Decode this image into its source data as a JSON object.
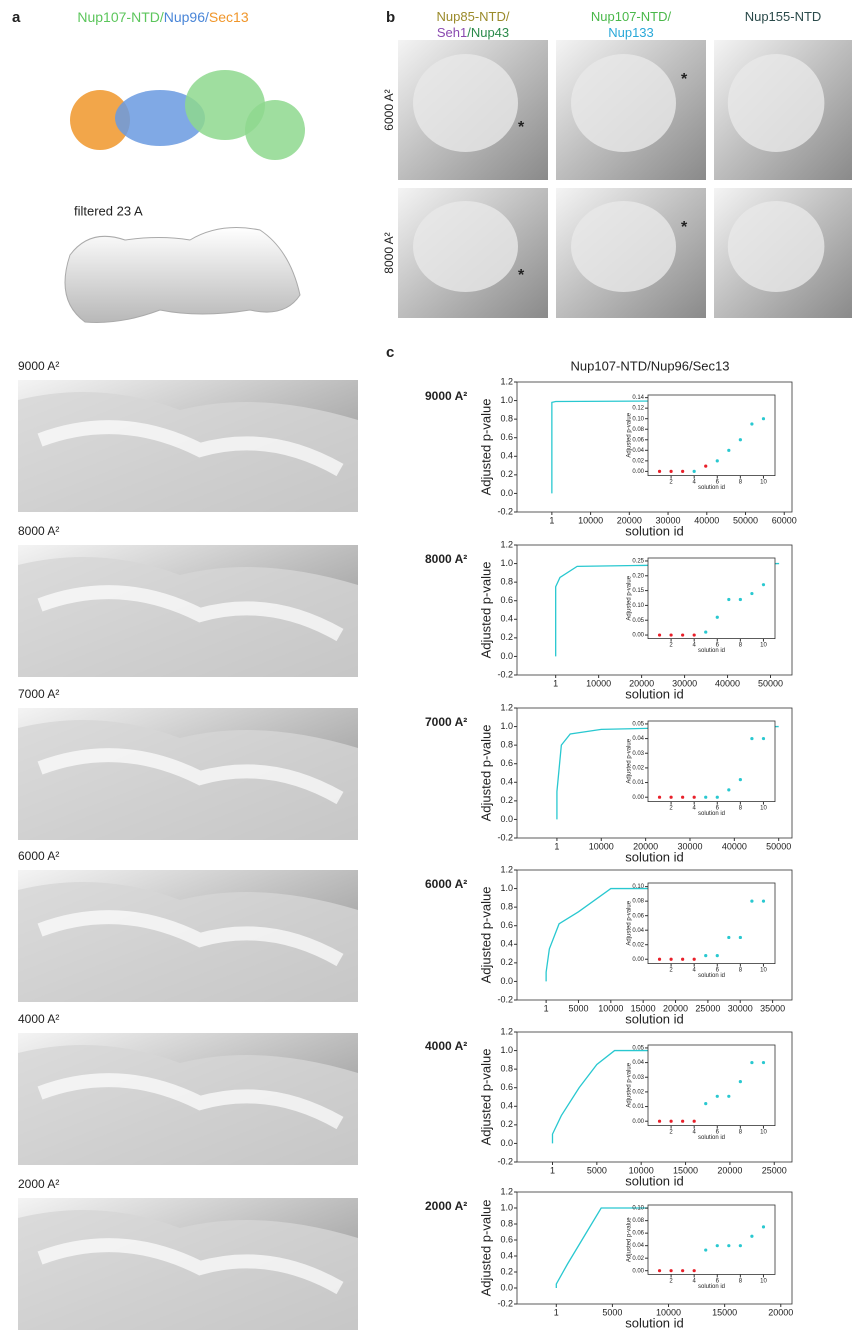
{
  "panel_a": {
    "label": "a",
    "title": [
      {
        "text": "Nup107-NTD/",
        "color": "#5cc65c"
      },
      {
        "text": "Nup96/",
        "color": "#4a86d8"
      },
      {
        "text": "Sec13",
        "color": "#f0962a"
      }
    ],
    "filtered": "filtered 23 A"
  },
  "panel_b": {
    "label": "b",
    "columns": [
      [
        [
          {
            "text": "Nup85-NTD/",
            "color": "#9a8a2a"
          }
        ],
        [
          {
            "text": "Seh1",
            "color": "#8a4ab0"
          },
          {
            "text": "/Nup43",
            "color": "#2a8a4a"
          }
        ]
      ],
      [
        [
          {
            "text": "Nup107-NTD/",
            "color": "#4ab84a"
          }
        ],
        [
          {
            "text": "Nup133",
            "color": "#29a8d8"
          }
        ]
      ],
      [
        [
          {
            "text": "Nup155-NTD",
            "color": "#2a4a4a"
          }
        ]
      ]
    ],
    "rows": [
      "6000 A²",
      "8000 A²"
    ],
    "marker": "*"
  },
  "maps": {
    "labels": [
      "9000 A²",
      "8000 A²",
      "7000 A²",
      "6000 A²",
      "4000 A²",
      "2000 A²"
    ]
  },
  "panel_c": {
    "label": "c",
    "title": "Nup107-NTD/Nup96/Sec13"
  },
  "chart_data": [
    {
      "type": "line",
      "label": "9000 A²",
      "xlabel": "solution id",
      "ylabel": "Adjusted p-value",
      "color": "#29c8d0",
      "x": [
        1,
        1,
        1000,
        57000
      ],
      "values": [
        0,
        0.98,
        0.99,
        1.0
      ],
      "xlim": [
        -9000,
        62000
      ],
      "xticks": [
        1,
        10000,
        20000,
        30000,
        40000,
        50000,
        60000
      ],
      "ylim": [
        -0.2,
        1.2
      ],
      "yticks": [
        {
          "value": -0.2,
          "label": "-0.2"
        },
        {
          "value": 0,
          "label": "0.0"
        },
        {
          "value": 0.2,
          "label": "0.2"
        },
        {
          "value": 0.4,
          "label": "0.4"
        },
        {
          "value": 0.6,
          "label": "0.6"
        },
        {
          "value": 0.8,
          "label": "0.8"
        },
        {
          "value": 1,
          "label": "1.0"
        },
        {
          "value": 1.2,
          "label": "1.2"
        }
      ],
      "inset": {
        "type": "scatter",
        "xlabel": "solution id",
        "ylabel": "Adjusted p-value",
        "x": [
          1,
          2,
          3,
          4,
          5,
          6,
          7,
          8,
          9,
          10
        ],
        "values": [
          0,
          0,
          0,
          0,
          0.01,
          0.02,
          0.04,
          0.06,
          0.09,
          0.1
        ],
        "colors": [
          "#e8202a",
          "#e8202a",
          "#e8202a",
          "#29c8d0",
          "#e8202a",
          "#29c8d0",
          "#29c8d0",
          "#29c8d0",
          "#29c8d0",
          "#29c8d0"
        ],
        "xlim": [
          0,
          11
        ],
        "xticks": [
          2,
          4,
          6,
          8,
          10
        ],
        "ylim": [
          -0.008,
          0.145
        ],
        "yticks": [
          {
            "value": 0,
            "label": "0.00"
          },
          {
            "value": 0.02,
            "label": "0.02"
          },
          {
            "value": 0.04,
            "label": "0.04"
          },
          {
            "value": 0.06,
            "label": "0.06"
          },
          {
            "value": 0.08,
            "label": "0.08"
          },
          {
            "value": 0.1,
            "label": "0.10"
          },
          {
            "value": 0.12,
            "label": "0.12"
          },
          {
            "value": 0.14,
            "label": "0.14"
          }
        ]
      }
    },
    {
      "type": "line",
      "label": "8000 A²",
      "xlabel": "solution id",
      "ylabel": "Adjusted p-value",
      "color": "#29c8d0",
      "x": [
        1,
        1,
        1000,
        5000,
        20000,
        52000
      ],
      "values": [
        0,
        0.75,
        0.85,
        0.97,
        0.98,
        1.0
      ],
      "xlim": [
        -9000,
        55000
      ],
      "xticks": [
        1,
        10000,
        20000,
        30000,
        40000,
        50000
      ],
      "ylim": [
        -0.2,
        1.2
      ],
      "yticks": [
        {
          "value": -0.2,
          "label": "-0.2"
        },
        {
          "value": 0,
          "label": "0.0"
        },
        {
          "value": 0.2,
          "label": "0.2"
        },
        {
          "value": 0.4,
          "label": "0.4"
        },
        {
          "value": 0.6,
          "label": "0.6"
        },
        {
          "value": 0.8,
          "label": "0.8"
        },
        {
          "value": 1,
          "label": "1.0"
        },
        {
          "value": 1.2,
          "label": "1.2"
        }
      ],
      "inset": {
        "type": "scatter",
        "xlabel": "solution id",
        "ylabel": "Adjusted p-value",
        "x": [
          1,
          2,
          3,
          4,
          5,
          6,
          7,
          8,
          9,
          10
        ],
        "values": [
          0,
          0,
          0,
          0,
          0.01,
          0.06,
          0.12,
          0.12,
          0.14,
          0.17
        ],
        "colors": [
          "#e8202a",
          "#e8202a",
          "#e8202a",
          "#e8202a",
          "#29c8d0",
          "#29c8d0",
          "#29c8d0",
          "#29c8d0",
          "#29c8d0",
          "#29c8d0"
        ],
        "xlim": [
          0,
          11
        ],
        "xticks": [
          2,
          4,
          6,
          8,
          10
        ],
        "ylim": [
          -0.012,
          0.26
        ],
        "yticks": [
          {
            "value": 0,
            "label": "0.00"
          },
          {
            "value": 0.05,
            "label": "0.05"
          },
          {
            "value": 0.1,
            "label": "0.10"
          },
          {
            "value": 0.15,
            "label": "0.15"
          },
          {
            "value": 0.2,
            "label": "0.20"
          },
          {
            "value": 0.25,
            "label": "0.25"
          }
        ]
      }
    },
    {
      "type": "line",
      "label": "7000 A²",
      "xlabel": "solution id",
      "ylabel": "Adjusted p-value",
      "color": "#29c8d0",
      "x": [
        1,
        1,
        1000,
        3000,
        10000,
        30000,
        50000
      ],
      "values": [
        0,
        0.3,
        0.8,
        0.92,
        0.97,
        0.99,
        1.0
      ],
      "xlim": [
        -9000,
        53000
      ],
      "xticks": [
        1,
        10000,
        20000,
        30000,
        40000,
        50000
      ],
      "ylim": [
        -0.2,
        1.2
      ],
      "yticks": [
        {
          "value": -0.2,
          "label": "-0.2"
        },
        {
          "value": 0,
          "label": "0.0"
        },
        {
          "value": 0.2,
          "label": "0.2"
        },
        {
          "value": 0.4,
          "label": "0.4"
        },
        {
          "value": 0.6,
          "label": "0.6"
        },
        {
          "value": 0.8,
          "label": "0.8"
        },
        {
          "value": 1,
          "label": "1.0"
        },
        {
          "value": 1.2,
          "label": "1.2"
        }
      ],
      "inset": {
        "type": "scatter",
        "xlabel": "solution id",
        "ylabel": "Adjusted p-value",
        "x": [
          1,
          2,
          3,
          4,
          5,
          6,
          7,
          8,
          9,
          10
        ],
        "values": [
          0,
          0,
          0,
          0,
          0,
          0,
          0.005,
          0.012,
          0.04,
          0.04
        ],
        "colors": [
          "#e8202a",
          "#e8202a",
          "#e8202a",
          "#e8202a",
          "#29c8d0",
          "#29c8d0",
          "#29c8d0",
          "#29c8d0",
          "#29c8d0",
          "#29c8d0"
        ],
        "xlim": [
          0,
          11
        ],
        "xticks": [
          2,
          4,
          6,
          8,
          10
        ],
        "ylim": [
          -0.003,
          0.052
        ],
        "yticks": [
          {
            "value": 0,
            "label": "0.00"
          },
          {
            "value": 0.01,
            "label": "0.01"
          },
          {
            "value": 0.02,
            "label": "0.02"
          },
          {
            "value": 0.03,
            "label": "0.03"
          },
          {
            "value": 0.04,
            "label": "0.04"
          },
          {
            "value": 0.05,
            "label": "0.05"
          }
        ]
      }
    },
    {
      "type": "line",
      "label": "6000 A²",
      "xlabel": "solution id",
      "ylabel": "Adjusted p-value",
      "color": "#29c8d0",
      "x": [
        1,
        1,
        500,
        2000,
        5000,
        10000,
        35000
      ],
      "values": [
        0,
        0.1,
        0.35,
        0.62,
        0.75,
        1.0,
        1.0
      ],
      "xlim": [
        -4500,
        38000
      ],
      "xticks": [
        1,
        5000,
        10000,
        15000,
        20000,
        25000,
        30000,
        35000
      ],
      "ylim": [
        -0.2,
        1.2
      ],
      "yticks": [
        {
          "value": -0.2,
          "label": "-0.2"
        },
        {
          "value": 0,
          "label": "0.0"
        },
        {
          "value": 0.2,
          "label": "0.2"
        },
        {
          "value": 0.4,
          "label": "0.4"
        },
        {
          "value": 0.6,
          "label": "0.6"
        },
        {
          "value": 0.8,
          "label": "0.8"
        },
        {
          "value": 1,
          "label": "1.0"
        },
        {
          "value": 1.2,
          "label": "1.2"
        }
      ],
      "inset": {
        "type": "scatter",
        "xlabel": "solution id",
        "ylabel": "Adjusted p-value",
        "x": [
          1,
          2,
          3,
          4,
          5,
          6,
          7,
          8,
          9,
          10
        ],
        "values": [
          0,
          0,
          0,
          0,
          0.005,
          0.005,
          0.03,
          0.03,
          0.08,
          0.08
        ],
        "colors": [
          "#e8202a",
          "#e8202a",
          "#e8202a",
          "#e8202a",
          "#29c8d0",
          "#29c8d0",
          "#29c8d0",
          "#29c8d0",
          "#29c8d0",
          "#29c8d0"
        ],
        "xlim": [
          0,
          11
        ],
        "xticks": [
          2,
          4,
          6,
          8,
          10
        ],
        "ylim": [
          -0.006,
          0.105
        ],
        "yticks": [
          {
            "value": 0,
            "label": "0.00"
          },
          {
            "value": 0.02,
            "label": "0.02"
          },
          {
            "value": 0.04,
            "label": "0.04"
          },
          {
            "value": 0.06,
            "label": "0.06"
          },
          {
            "value": 0.08,
            "label": "0.08"
          },
          {
            "value": 0.1,
            "label": "0.10"
          }
        ]
      }
    },
    {
      "type": "line",
      "label": "4000 A²",
      "xlabel": "solution id",
      "ylabel": "Adjusted p-value",
      "color": "#29c8d0",
      "x": [
        1,
        1,
        1000,
        3000,
        5000,
        7000,
        23000
      ],
      "values": [
        0,
        0.1,
        0.3,
        0.6,
        0.85,
        1.0,
        1.0
      ],
      "xlim": [
        -4000,
        27000
      ],
      "xticks": [
        1,
        5000,
        10000,
        15000,
        20000,
        25000
      ],
      "ylim": [
        -0.2,
        1.2
      ],
      "yticks": [
        {
          "value": -0.2,
          "label": "-0.2"
        },
        {
          "value": 0,
          "label": "0.0"
        },
        {
          "value": 0.2,
          "label": "0.2"
        },
        {
          "value": 0.4,
          "label": "0.4"
        },
        {
          "value": 0.6,
          "label": "0.6"
        },
        {
          "value": 0.8,
          "label": "0.8"
        },
        {
          "value": 1,
          "label": "1.0"
        },
        {
          "value": 1.2,
          "label": "1.2"
        }
      ],
      "inset": {
        "type": "scatter",
        "xlabel": "solution id",
        "ylabel": "Adjusted p-value",
        "x": [
          1,
          2,
          3,
          4,
          5,
          6,
          7,
          8,
          9,
          10
        ],
        "values": [
          0,
          0,
          0,
          0,
          0.012,
          0.017,
          0.017,
          0.027,
          0.04,
          0.04
        ],
        "colors": [
          "#e8202a",
          "#e8202a",
          "#e8202a",
          "#e8202a",
          "#29c8d0",
          "#29c8d0",
          "#29c8d0",
          "#29c8d0",
          "#29c8d0",
          "#29c8d0"
        ],
        "xlim": [
          0,
          11
        ],
        "xticks": [
          2,
          4,
          6,
          8,
          10
        ],
        "ylim": [
          -0.003,
          0.052
        ],
        "yticks": [
          {
            "value": 0,
            "label": "0.00"
          },
          {
            "value": 0.01,
            "label": "0.01"
          },
          {
            "value": 0.02,
            "label": "0.02"
          },
          {
            "value": 0.03,
            "label": "0.03"
          },
          {
            "value": 0.04,
            "label": "0.04"
          },
          {
            "value": 0.05,
            "label": "0.05"
          }
        ]
      }
    },
    {
      "type": "line",
      "label": "2000 A²",
      "xlabel": "solution id",
      "ylabel": "Adjusted p-value",
      "color": "#29c8d0",
      "x": [
        1,
        1,
        1000,
        2500,
        4000,
        16000
      ],
      "values": [
        0,
        0.05,
        0.3,
        0.65,
        1.0,
        1.0
      ],
      "xlim": [
        -3500,
        21000
      ],
      "xticks": [
        1,
        5000,
        10000,
        15000,
        20000
      ],
      "ylim": [
        -0.2,
        1.2
      ],
      "yticks": [
        {
          "value": -0.2,
          "label": "-0.2"
        },
        {
          "value": 0,
          "label": "0.0"
        },
        {
          "value": 0.2,
          "label": "0.2"
        },
        {
          "value": 0.4,
          "label": "0.4"
        },
        {
          "value": 0.6,
          "label": "0.6"
        },
        {
          "value": 0.8,
          "label": "0.8"
        },
        {
          "value": 1,
          "label": "1.0"
        },
        {
          "value": 1.2,
          "label": "1.2"
        }
      ],
      "inset": {
        "type": "scatter",
        "xlabel": "solution id",
        "ylabel": "Adjusted p-value",
        "x": [
          1,
          2,
          3,
          4,
          5,
          6,
          7,
          8,
          9,
          10
        ],
        "values": [
          0,
          0,
          0,
          0,
          0.033,
          0.04,
          0.04,
          0.04,
          0.055,
          0.07
        ],
        "colors": [
          "#e8202a",
          "#e8202a",
          "#e8202a",
          "#e8202a",
          "#29c8d0",
          "#29c8d0",
          "#29c8d0",
          "#29c8d0",
          "#29c8d0",
          "#29c8d0"
        ],
        "xlim": [
          0,
          11
        ],
        "xticks": [
          2,
          4,
          6,
          8,
          10
        ],
        "ylim": [
          -0.006,
          0.105
        ],
        "yticks": [
          {
            "value": 0,
            "label": "0.00"
          },
          {
            "value": 0.02,
            "label": "0.02"
          },
          {
            "value": 0.04,
            "label": "0.04"
          },
          {
            "value": 0.06,
            "label": "0.06"
          },
          {
            "value": 0.08,
            "label": "0.08"
          },
          {
            "value": 0.1,
            "label": "0.10"
          }
        ]
      }
    }
  ]
}
